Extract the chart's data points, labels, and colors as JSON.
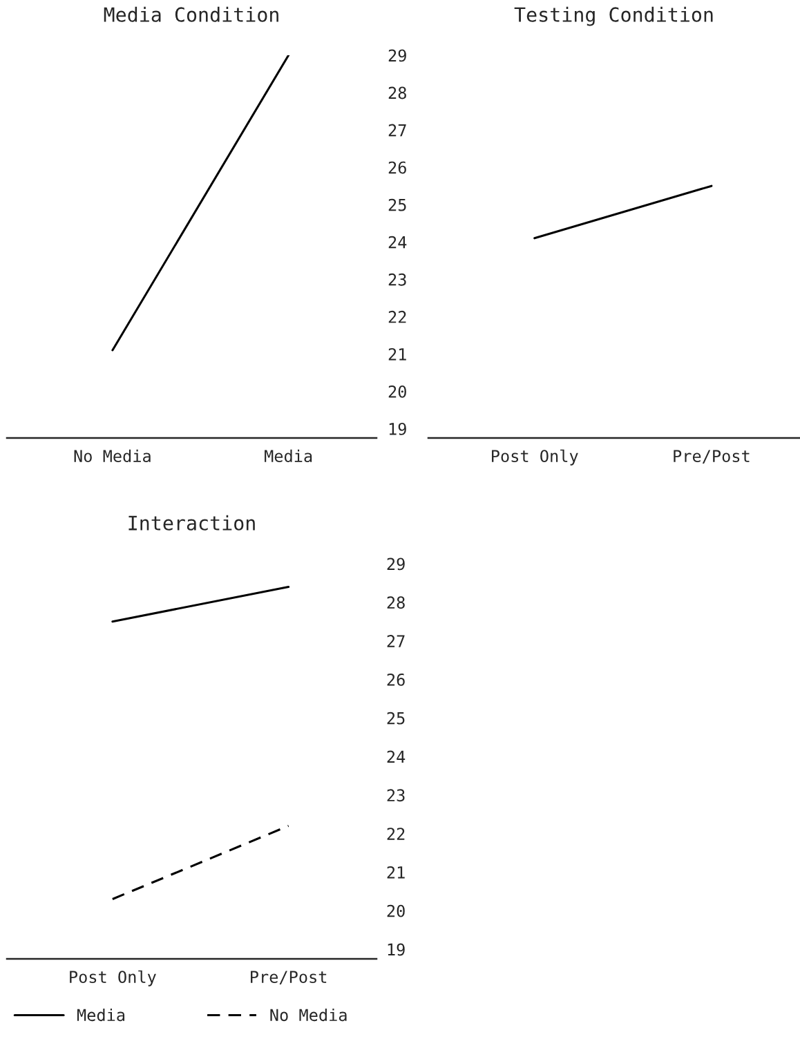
{
  "chart_data": [
    {
      "type": "line",
      "title": "Media Condition",
      "categories": [
        "No Media",
        "Media"
      ],
      "series": [
        {
          "color": "#000000",
          "values": [
            21.1,
            29
          ],
          "line_style": "solid"
        }
      ],
      "ylim": [
        18.75,
        29
      ],
      "yticks": [
        19,
        20,
        21,
        22,
        23,
        24,
        25,
        26,
        27,
        28,
        29
      ],
      "tick_labels": "x",
      "grid": false,
      "marker": "none"
    },
    {
      "type": "line",
      "title": "Testing Condition",
      "categories": [
        "Post Only",
        "Pre/Post"
      ],
      "series": [
        {
          "color": "#000000",
          "values": [
            24.1,
            25.5
          ],
          "line_style": "solid"
        }
      ],
      "ylim": [
        18.75,
        29
      ],
      "yticks": [
        19,
        20,
        21,
        22,
        23,
        24,
        25,
        26,
        27,
        28,
        29
      ],
      "grid": false,
      "marker": "none"
    },
    {
      "type": "line",
      "title": "Interaction",
      "categories": [
        "Post Only",
        "Pre/Post"
      ],
      "series": [
        {
          "name": "Media",
          "color": "#000000",
          "values": [
            27.5,
            28.4
          ],
          "line_style": "solid"
        },
        {
          "name": "No Media",
          "color": "#000000",
          "values": [
            20.3,
            22.2
          ],
          "line_style": "dashed"
        }
      ],
      "ylim": [
        18.75,
        29
      ],
      "yticks": [
        19,
        20,
        21,
        22,
        23,
        24,
        25,
        26,
        27,
        28,
        29
      ],
      "grid": false,
      "marker": "none",
      "legend": "bottom"
    }
  ]
}
